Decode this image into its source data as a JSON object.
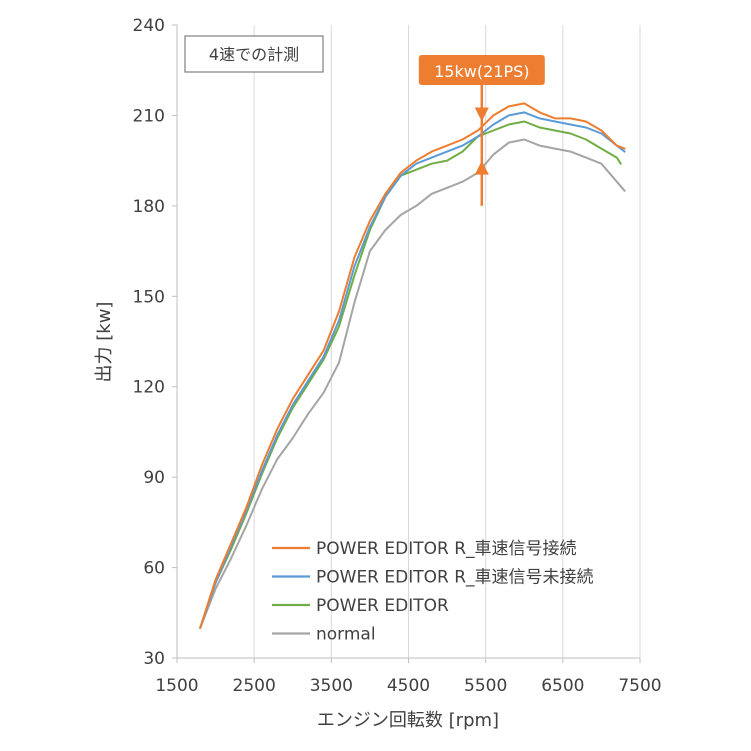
{
  "colors": {
    "editor_r_connected": "#ED7D31",
    "editor_r_unconnected": "#5B9BD5",
    "editor": "#70AD47",
    "normal": "#A5A5A5",
    "callout": "#ED7D31",
    "grid": "#D9D9D9",
    "axis": "#404040"
  },
  "note": "4速での計測",
  "callout": {
    "label": "15kw(21PS)",
    "x": 5450,
    "y_low": 195,
    "y_high": 208
  },
  "chart_data": {
    "type": "line",
    "title": "",
    "xlabel": "エンジン回転数 [rpm]",
    "ylabel": "出力 [kw]",
    "xlim": [
      1500,
      7500
    ],
    "ylim": [
      30,
      240
    ],
    "x_ticks": [
      1500,
      2500,
      3500,
      4500,
      5500,
      6500,
      7500
    ],
    "y_ticks": [
      30,
      60,
      90,
      120,
      150,
      180,
      210,
      240
    ],
    "x_tick_labels": [
      "1500",
      "2500",
      "3500",
      "4500",
      "5500",
      "6500",
      "7500"
    ],
    "y_tick_labels": [
      "30",
      "60",
      "90",
      "120",
      "150",
      "180",
      "210",
      "240"
    ],
    "grid": "vertical",
    "legend_position": "bottom-right",
    "series": [
      {
        "name": "POWER EDITOR R_車速信号接続",
        "color": "#ED7D31",
        "x": [
          1800,
          2000,
          2200,
          2400,
          2600,
          2800,
          3000,
          3200,
          3400,
          3600,
          3800,
          4000,
          4200,
          4400,
          4600,
          4800,
          5000,
          5200,
          5400,
          5600,
          5800,
          6000,
          6200,
          6400,
          6600,
          6800,
          7000,
          7200,
          7300
        ],
        "y": [
          40,
          56,
          68,
          80,
          94,
          106,
          116,
          124,
          132,
          145,
          163,
          175,
          184,
          191,
          195,
          198,
          200,
          202,
          205,
          210,
          213,
          214,
          211,
          209,
          209,
          208,
          205,
          200,
          199
        ]
      },
      {
        "name": "POWER EDITOR R_車速信号未接続",
        "color": "#5B9BD5",
        "x": [
          1800,
          2000,
          2200,
          2400,
          2600,
          2800,
          3000,
          3200,
          3400,
          3600,
          3800,
          4000,
          4200,
          4400,
          4600,
          4800,
          5000,
          5200,
          5400,
          5600,
          5800,
          6000,
          6200,
          6400,
          6600,
          6800,
          7000,
          7200,
          7300
        ],
        "y": [
          40,
          55,
          67,
          79,
          92,
          104,
          114,
          122,
          130,
          142,
          160,
          173,
          183,
          190,
          194,
          196,
          198,
          200,
          203,
          207,
          210,
          211,
          209,
          208,
          207,
          206,
          204,
          200,
          198
        ]
      },
      {
        "name": "POWER EDITOR",
        "color": "#70AD47",
        "x": [
          1800,
          2000,
          2200,
          2400,
          2600,
          2800,
          3000,
          3200,
          3400,
          3600,
          3800,
          4000,
          4200,
          4400,
          4600,
          4800,
          5000,
          5200,
          5400,
          5600,
          5800,
          6000,
          6200,
          6400,
          6600,
          6800,
          7000,
          7200,
          7250
        ],
        "y": [
          40,
          55,
          66,
          78,
          91,
          103,
          113,
          121,
          129,
          140,
          157,
          172,
          183,
          190,
          192,
          194,
          195,
          198,
          203,
          205,
          207,
          208,
          206,
          205,
          204,
          202,
          199,
          196,
          194
        ]
      },
      {
        "name": "normal",
        "color": "#A5A5A5",
        "x": [
          1800,
          2000,
          2200,
          2400,
          2600,
          2800,
          3000,
          3200,
          3400,
          3600,
          3800,
          4000,
          4200,
          4400,
          4600,
          4800,
          5000,
          5200,
          5400,
          5600,
          5800,
          6000,
          6200,
          6400,
          6600,
          6800,
          7000,
          7200,
          7300
        ],
        "y": [
          40,
          53,
          63,
          74,
          86,
          96,
          103,
          111,
          118,
          128,
          148,
          165,
          172,
          177,
          180,
          184,
          186,
          188,
          191,
          197,
          201,
          202,
          200,
          199,
          198,
          196,
          194,
          188,
          185
        ]
      }
    ]
  }
}
